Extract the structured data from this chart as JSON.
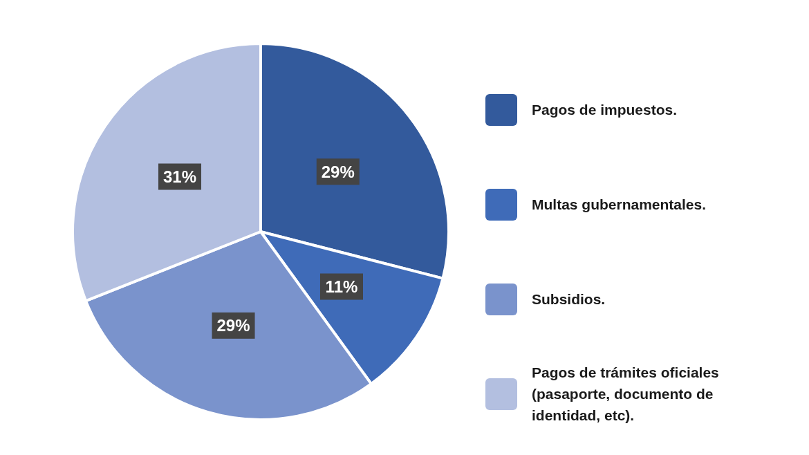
{
  "chart_data": {
    "type": "pie",
    "categories": [
      "Pagos de impuestos.",
      "Multas gubernamentales.",
      "Subsidios.",
      "Pagos de trámites oficiales (pasaporte, documento de identidad, etc)."
    ],
    "values": [
      29,
      11,
      29,
      31
    ],
    "value_labels": [
      "29%",
      "11%",
      "29%",
      "31%"
    ],
    "colors": [
      "#335a9c",
      "#3f6bb8",
      "#7a93cc",
      "#b3bfe0"
    ],
    "legend": "right"
  }
}
